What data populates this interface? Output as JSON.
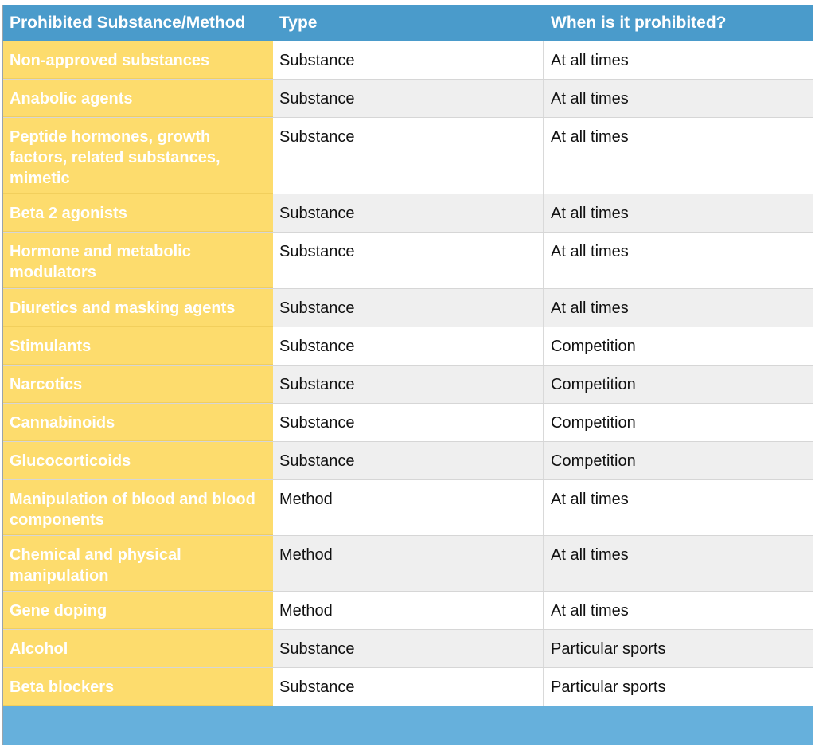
{
  "table": {
    "headers": [
      "Prohibited Substance/Method",
      "Type",
      "When is it prohibited?"
    ],
    "rows": [
      {
        "name": "Non-approved substances",
        "type": "Substance",
        "when": "At all times"
      },
      {
        "name": "Anabolic agents",
        "type": "Substance",
        "when": "At all times"
      },
      {
        "name": "Peptide hormones, growth factors, related substances, mimetic",
        "type": "Substance",
        "when": "At all times"
      },
      {
        "name": "Beta 2 agonists",
        "type": "Substance",
        "when": "At all times"
      },
      {
        "name": "Hormone and metabolic modulators",
        "type": "Substance",
        "when": "At all times"
      },
      {
        "name": "Diuretics and masking agents",
        "type": "Substance",
        "when": "At all times"
      },
      {
        "name": "Stimulants",
        "type": "Substance",
        "when": "Competition"
      },
      {
        "name": "Narcotics",
        "type": "Substance",
        "when": "Competition"
      },
      {
        "name": "Cannabinoids",
        "type": "Substance",
        "when": "Competition"
      },
      {
        "name": "Glucocorticoids",
        "type": "Substance",
        "when": "Competition"
      },
      {
        "name": "Manipulation of blood and blood components",
        "type": "Method",
        "when": "At all times"
      },
      {
        "name": "Chemical and physical manipulation",
        "type": "Method",
        "when": "At all times"
      },
      {
        "name": "Gene doping",
        "type": "Method",
        "when": "At all times"
      },
      {
        "name": "Alcohol",
        "type": "Substance",
        "when": "Particular sports"
      },
      {
        "name": "Beta blockers",
        "type": "Substance",
        "when": "Particular sports"
      }
    ]
  },
  "colors": {
    "header_bg": "#4a9bcb",
    "name_col_bg": "#fddc6d",
    "alt_row_bg": "#efefef",
    "footer_bg": "#66b0dc"
  }
}
